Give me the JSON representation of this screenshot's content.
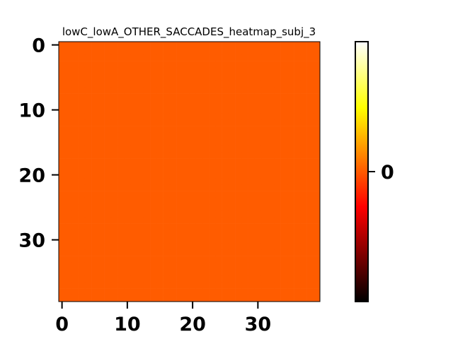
{
  "chart_data": {
    "type": "heatmap",
    "title": "lowC_lowA_OTHER_SACCADES_heatmap_subj_3",
    "xlabel": "",
    "ylabel": "",
    "rows": 40,
    "cols": 40,
    "cell_value": 0,
    "cell_color": "#ff5c00",
    "x_ticks": [
      0,
      10,
      20,
      30
    ],
    "y_ticks": [
      0,
      10,
      20,
      30
    ],
    "x_tick_labels": [
      "0",
      "10",
      "20",
      "30"
    ],
    "y_tick_labels": [
      "0",
      "10",
      "20",
      "30"
    ],
    "xlim": [
      -0.5,
      39.5
    ],
    "ylim": [
      39.5,
      -0.5
    ],
    "colormap": "hot",
    "colormap_stops": [
      "#000000",
      "#ff0000",
      "#ffff00",
      "#ffffff"
    ],
    "colorbar": {
      "ticks": [
        0
      ],
      "tick_labels": [
        "0"
      ],
      "position": "right"
    }
  }
}
